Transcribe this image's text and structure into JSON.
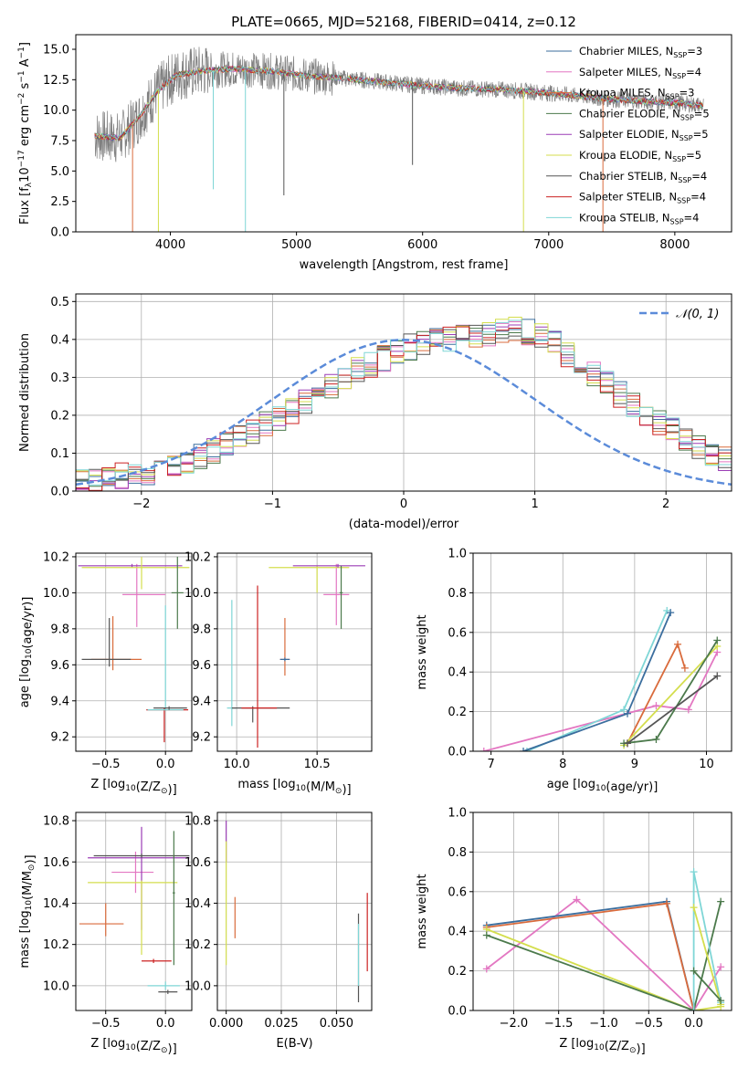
{
  "figure_title": "PLATE=0665, MJD=52168, FIBERID=0414, z=0.12",
  "colors": {
    "c0": "#3b6e9e",
    "c1": "#e377c2",
    "c2": "#d96b3c",
    "c3": "#4c7a4c",
    "c4": "#9b3db5",
    "c5": "#d4de4e",
    "c6": "#555555",
    "c7": "#cc2222",
    "c8": "#7fd6d6",
    "normal": "#5b8bd9",
    "grid": "#b0b0b0"
  },
  "chart_data": [
    {
      "id": "spectrum",
      "type": "line",
      "xlabel": "wavelength [Angstrom, rest frame]",
      "ylabel": "Flux [f",
      "xlim": [
        3250,
        8450
      ],
      "ylim": [
        0,
        16.2
      ],
      "xticks": [
        4000,
        5000,
        6000,
        7000,
        8000
      ],
      "yticks": [
        0.0,
        2.5,
        5.0,
        7.5,
        10.0,
        12.5,
        15.0
      ],
      "grid": false,
      "legend_position": "top-right",
      "series": [
        {
          "name": "Chabrier MILES, N",
          "sub": "SSP",
          "tail": "=3",
          "color": "c0"
        },
        {
          "name": "Salpeter MILES, N",
          "sub": "SSP",
          "tail": "=4",
          "color": "c1"
        },
        {
          "name": "Kroupa MILES, N",
          "sub": "SSP",
          "tail": "=3",
          "color": "c2"
        },
        {
          "name": "Chabrier ELODIE, N",
          "sub": "SSP",
          "tail": "=5",
          "color": "c3"
        },
        {
          "name": "Salpeter ELODIE, N",
          "sub": "SSP",
          "tail": "=5",
          "color": "c4"
        },
        {
          "name": "Kroupa ELODIE, N",
          "sub": "SSP",
          "tail": "=5",
          "color": "c5"
        },
        {
          "name": "Chabrier STELIB, N",
          "sub": "SSP",
          "tail": "=4",
          "color": "c6"
        },
        {
          "name": "Salpeter STELIB, N",
          "sub": "SSP",
          "tail": "=4",
          "color": "c7"
        },
        {
          "name": "Kroupa STELIB, N",
          "sub": "SSP",
          "tail": "=4",
          "color": "c8"
        }
      ],
      "continuum": {
        "x": [
          3400,
          3600,
          3750,
          3900,
          4050,
          4250,
          4500,
          4800,
          5100,
          5400,
          5700,
          6000,
          6300,
          6600,
          6900,
          7200,
          7500,
          7800,
          8000,
          8200
        ],
        "y": [
          7.9,
          7.7,
          9.4,
          11.6,
          12.9,
          13.2,
          13.4,
          13.2,
          12.8,
          12.6,
          12.3,
          12.0,
          11.8,
          11.7,
          11.5,
          11.2,
          10.9,
          10.7,
          10.6,
          10.4
        ]
      },
      "spikes_down": [
        {
          "x": 3700,
          "y": 0.0,
          "color": "c2"
        },
        {
          "x": 3905,
          "y": 0.0,
          "color": "c5"
        },
        {
          "x": 4595,
          "y": 0.0,
          "color": "c8"
        },
        {
          "x": 4340,
          "y": 3.5,
          "color": "c8"
        },
        {
          "x": 4900,
          "y": 3.0,
          "color": "c6"
        },
        {
          "x": 6800,
          "y": 0.0,
          "color": "c5"
        },
        {
          "x": 7430,
          "y": 0.0,
          "color": "c2"
        },
        {
          "x": 5920,
          "y": 5.5,
          "color": "c6"
        }
      ]
    },
    {
      "id": "residuals",
      "type": "histogram",
      "xlabel": "(data-model)/error",
      "ylabel": "Normed distribution",
      "xlim": [
        -2.5,
        2.5
      ],
      "ylim": [
        0,
        0.52
      ],
      "xticks": [
        -2,
        -1,
        0,
        1,
        2
      ],
      "yticks": [
        0.0,
        0.1,
        0.2,
        0.3,
        0.4,
        0.5
      ],
      "grid": true,
      "legend_position": "top-right",
      "legend_label": "𝒩(0, 1)",
      "bin_width": 0.1,
      "bin_start": -2.5,
      "base_values": [
        0.03,
        0.03,
        0.035,
        0.04,
        0.045,
        0.05,
        0.06,
        0.065,
        0.075,
        0.09,
        0.105,
        0.12,
        0.14,
        0.16,
        0.175,
        0.19,
        0.21,
        0.235,
        0.255,
        0.275,
        0.3,
        0.32,
        0.335,
        0.35,
        0.37,
        0.38,
        0.39,
        0.395,
        0.4,
        0.405,
        0.41,
        0.415,
        0.42,
        0.425,
        0.42,
        0.41,
        0.39,
        0.36,
        0.335,
        0.31,
        0.285,
        0.255,
        0.23,
        0.205,
        0.18,
        0.16,
        0.14,
        0.12,
        0.1,
        0.085,
        0.07,
        0.06,
        0.055,
        0.05,
        0.045,
        0.04,
        0.035,
        0.03,
        0.03,
        0.025
      ],
      "hist_colors": [
        "c0",
        "c1",
        "c2",
        "c3",
        "c4",
        "c5",
        "c6",
        "c7",
        "c8"
      ]
    },
    {
      "id": "age_vs_z",
      "type": "errorbar",
      "xlabel": "Z [log",
      "xlabel_sub": "10",
      "xlabel_tail": "(Z/Z",
      "xlabel_sym": "⊙",
      "xlabel_end": ")]",
      "ylabel": "age  [log",
      "ylabel_sub": "10",
      "ylabel_tail": "(age/yr)]",
      "xlim": [
        -0.75,
        0.22
      ],
      "ylim": [
        9.12,
        10.22
      ],
      "xticks": [
        -0.5,
        0.0
      ],
      "yticks": [
        9.2,
        9.4,
        9.6,
        9.8,
        10.0,
        10.2
      ],
      "grid": true,
      "points": [
        {
          "color": "c2",
          "x": -0.44,
          "xerr": [
            0.18,
            0.24
          ],
          "y": 9.63,
          "yerr": [
            0.06,
            0.24
          ]
        },
        {
          "color": "c6",
          "x": -0.47,
          "xerr": [
            0.23,
            0.18
          ],
          "y": 9.63,
          "yerr": [
            0.04,
            0.23
          ]
        },
        {
          "color": "c1",
          "x": -0.24,
          "xerr": [
            0.12,
            0.24
          ],
          "y": 9.99,
          "yerr": [
            0.18,
            0.17
          ]
        },
        {
          "color": "c4",
          "x": -0.28,
          "xerr": [
            0.45,
            0.42
          ],
          "y": 10.15,
          "yerr": [
            0.01,
            0.01
          ]
        },
        {
          "color": "c5",
          "x": -0.2,
          "xerr": [
            0.5,
            0.4
          ],
          "y": 10.14,
          "yerr": [
            0.12,
            0.06
          ]
        },
        {
          "color": "c3",
          "x": 0.1,
          "xerr": [
            0.05,
            0.05
          ],
          "y": 10.0,
          "yerr": [
            0.2,
            0.2
          ]
        },
        {
          "color": "c7",
          "x": -0.01,
          "xerr": [
            0.15,
            0.2
          ],
          "y": 9.35,
          "yerr": [
            0.18,
            0.01
          ]
        },
        {
          "color": "c8",
          "x": 0.0,
          "xerr": [
            0.15,
            0.15
          ],
          "y": 9.35,
          "yerr": [
            0.0,
            0.58
          ]
        },
        {
          "color": "c6",
          "x": 0.03,
          "xerr": [
            0.13,
            0.15
          ],
          "y": 9.36,
          "yerr": [
            0.01,
            0.01
          ]
        }
      ]
    },
    {
      "id": "age_vs_mass",
      "type": "errorbar",
      "xlabel": "mass [log",
      "xlabel_sub": "10",
      "xlabel_tail": "(M/M",
      "xlabel_sym": "⊙",
      "xlabel_end": ")]",
      "xlim": [
        9.88,
        10.84
      ],
      "ylim": [
        9.12,
        10.22
      ],
      "xticks": [
        10.0,
        10.5
      ],
      "yticks": [
        9.2,
        9.4,
        9.6,
        9.8,
        10.0,
        10.2
      ],
      "grid": true,
      "points": [
        {
          "color": "c8",
          "x": 9.97,
          "xerr": [
            0.03,
            0.03
          ],
          "y": 9.36,
          "yerr": [
            0.1,
            0.6
          ]
        },
        {
          "color": "c6",
          "x": 10.1,
          "xerr": [
            0.13,
            0.23
          ],
          "y": 9.36,
          "yerr": [
            0.08,
            0.01
          ]
        },
        {
          "color": "c7",
          "x": 10.13,
          "xerr": [
            0.1,
            0.12
          ],
          "y": 9.36,
          "yerr": [
            0.22,
            0.68
          ]
        },
        {
          "color": "c2",
          "x": 10.3,
          "xerr": [
            0.03,
            0.03
          ],
          "y": 9.63,
          "yerr": [
            0.09,
            0.23
          ]
        },
        {
          "color": "c0",
          "x": 10.3,
          "xerr": [
            0.03,
            0.03
          ],
          "y": 9.63,
          "yerr": [
            0.01,
            0.01
          ]
        },
        {
          "color": "c1",
          "x": 10.62,
          "xerr": [
            0.08,
            0.08
          ],
          "y": 9.99,
          "yerr": [
            0.17,
            0.17
          ]
        },
        {
          "color": "c5",
          "x": 10.5,
          "xerr": [
            0.3,
            0.2
          ],
          "y": 10.14,
          "yerr": [
            0.14,
            0.01
          ]
        },
        {
          "color": "c4",
          "x": 10.63,
          "xerr": [
            0.28,
            0.17
          ],
          "y": 10.15,
          "yerr": [
            0.01,
            0.01
          ]
        },
        {
          "color": "c3",
          "x": 10.65,
          "xerr": [
            0.01,
            0.01
          ],
          "y": 10.0,
          "yerr": [
            0.2,
            0.15
          ]
        }
      ]
    },
    {
      "id": "weight_vs_age",
      "type": "line",
      "xlabel": "age  [log",
      "xlabel_sub": "10",
      "xlabel_tail": "(age/yr)]",
      "ylabel": "mass weight",
      "xlim": [
        6.75,
        10.35
      ],
      "ylim": [
        0,
        1.0
      ],
      "xticks": [
        7,
        8,
        9,
        10
      ],
      "yticks": [
        0.0,
        0.2,
        0.4,
        0.6,
        0.8,
        1.0
      ],
      "grid": true,
      "series": [
        {
          "color": "c1",
          "x": [
            6.9,
            9.3,
            9.75,
            10.15
          ],
          "y": [
            0.0,
            0.23,
            0.21,
            0.5
          ]
        },
        {
          "color": "c8",
          "x": [
            7.5,
            8.85,
            9.45
          ],
          "y": [
            0.0,
            0.21,
            0.71
          ]
        },
        {
          "color": "c0",
          "x": [
            7.45,
            8.9,
            9.5
          ],
          "y": [
            0.0,
            0.19,
            0.7
          ]
        },
        {
          "color": "c2",
          "x": [
            8.9,
            9.6,
            9.7
          ],
          "y": [
            0.04,
            0.54,
            0.42
          ]
        },
        {
          "color": "c5",
          "x": [
            8.85,
            10.15
          ],
          "y": [
            0.03,
            0.53
          ]
        },
        {
          "color": "c3",
          "x": [
            8.85,
            9.3,
            10.15
          ],
          "y": [
            0.04,
            0.06,
            0.56
          ]
        },
        {
          "color": "c6",
          "x": [
            8.9,
            10.15
          ],
          "y": [
            0.04,
            0.38
          ]
        }
      ]
    },
    {
      "id": "mass_vs_z",
      "type": "errorbar",
      "xlabel": "Z [log",
      "xlabel_sub": "10",
      "xlabel_tail": "(Z/Z",
      "xlabel_sym": "⊙",
      "xlabel_end": ")]",
      "ylabel": "mass [log",
      "ylabel_sub": "10",
      "ylabel_tail": "(M/M",
      "ylabel_sym": "⊙",
      "ylabel_end": ")]",
      "xlim": [
        -0.75,
        0.22
      ],
      "ylim": [
        9.88,
        10.84
      ],
      "xticks": [
        -0.5,
        0.0
      ],
      "yticks": [
        10.0,
        10.2,
        10.4,
        10.6,
        10.8
      ],
      "grid": true,
      "points": [
        {
          "color": "c2",
          "x": -0.5,
          "xerr": [
            0.22,
            0.15
          ],
          "y": 10.3,
          "yerr": [
            0.06,
            0.1
          ]
        },
        {
          "color": "c1",
          "x": -0.25,
          "xerr": [
            0.2,
            0.15
          ],
          "y": 10.55,
          "yerr": [
            0.1,
            0.1
          ]
        },
        {
          "color": "c4",
          "x": -0.2,
          "xerr": [
            0.45,
            0.4
          ],
          "y": 10.62,
          "yerr": [
            0.35,
            0.15
          ]
        },
        {
          "color": "c5",
          "x": -0.2,
          "xerr": [
            0.45,
            0.3
          ],
          "y": 10.5,
          "yerr": [
            0.35,
            0.01
          ]
        },
        {
          "color": "c6",
          "x": -0.2,
          "xerr": [
            0.4,
            0.4
          ],
          "y": 10.63,
          "yerr": [
            0.01,
            0.01
          ]
        },
        {
          "color": "c7",
          "x": -0.1,
          "xerr": [
            0.1,
            0.15
          ],
          "y": 10.12,
          "yerr": [
            0.01,
            0.01
          ]
        },
        {
          "color": "c3",
          "x": 0.07,
          "xerr": [
            0.01,
            0.01
          ],
          "y": 10.45,
          "yerr": [
            0.35,
            0.3
          ]
        },
        {
          "color": "c8",
          "x": 0.0,
          "xerr": [
            0.15,
            0.12
          ],
          "y": 10.0,
          "yerr": [
            0.02,
            0.02
          ]
        },
        {
          "color": "c6",
          "x": 0.02,
          "xerr": [
            0.08,
            0.08
          ],
          "y": 9.97,
          "yerr": [
            0.01,
            0.01
          ]
        }
      ]
    },
    {
      "id": "mass_vs_ebv",
      "type": "errorbar",
      "xlabel": "E(B-V)",
      "xlim": [
        -0.004,
        0.066
      ],
      "ylim": [
        9.88,
        10.84
      ],
      "xticks": [
        0.0,
        0.025,
        0.05
      ],
      "yticks": [
        10.0,
        10.2,
        10.4,
        10.6,
        10.8
      ],
      "grid": true,
      "points": [
        {
          "color": "c4",
          "x": 0.0,
          "xerr": [
            0.0,
            0.0
          ],
          "y": 10.62,
          "yerr": [
            0.02,
            0.18
          ]
        },
        {
          "color": "c5",
          "x": 0.0,
          "xerr": [
            0.0,
            0.0
          ],
          "y": 10.5,
          "yerr": [
            0.4,
            0.2
          ]
        },
        {
          "color": "c2",
          "x": 0.004,
          "xerr": [
            0.0,
            0.0
          ],
          "y": 10.3,
          "yerr": [
            0.07,
            0.13
          ]
        },
        {
          "color": "c7",
          "x": 0.064,
          "xerr": [
            0.0,
            0.0
          ],
          "y": 10.25,
          "yerr": [
            0.18,
            0.2
          ]
        },
        {
          "color": "c6",
          "x": 0.06,
          "xerr": [
            0.0,
            0.0
          ],
          "y": 10.1,
          "yerr": [
            0.18,
            0.25
          ]
        },
        {
          "color": "c8",
          "x": 0.06,
          "xerr": [
            0.0,
            0.0
          ],
          "y": 10.1,
          "yerr": [
            0.1,
            0.2
          ]
        }
      ]
    },
    {
      "id": "weight_vs_z",
      "type": "line",
      "xlabel": "Z [log",
      "xlabel_sub": "10",
      "xlabel_tail": "(Z/Z",
      "xlabel_sym": "⊙",
      "xlabel_end": ")]",
      "ylabel": "mass weight",
      "xlim": [
        -2.45,
        0.42
      ],
      "ylim": [
        0,
        1.0
      ],
      "xticks": [
        -2.0,
        -1.5,
        -1.0,
        -0.5,
        0.0
      ],
      "yticks": [
        0.0,
        0.2,
        0.4,
        0.6,
        0.8,
        1.0
      ],
      "grid": true,
      "series": [
        {
          "color": "c1",
          "x": [
            -2.3,
            -1.3,
            0.0,
            0.3
          ],
          "y": [
            0.21,
            0.56,
            0.0,
            0.22
          ]
        },
        {
          "color": "c0",
          "x": [
            -2.3,
            -0.3,
            0.0
          ],
          "y": [
            0.43,
            0.55,
            0.0
          ]
        },
        {
          "color": "c2",
          "x": [
            -2.3,
            -0.3,
            0.0
          ],
          "y": [
            0.42,
            0.54,
            0.0
          ]
        },
        {
          "color": "c5",
          "x": [
            -2.3,
            0.0,
            0.3
          ],
          "y": [
            0.41,
            0.0,
            0.02
          ]
        },
        {
          "color": "c3",
          "x": [
            -2.3,
            0.0,
            0.3
          ],
          "y": [
            0.38,
            0.0,
            0.55
          ]
        },
        {
          "color": "c8",
          "x": [
            0.0,
            0.0,
            0.3
          ],
          "y": [
            0.0,
            0.7,
            0.04
          ]
        },
        {
          "color": "c5",
          "x": [
            0.0,
            0.3
          ],
          "y": [
            0.52,
            0.03
          ]
        },
        {
          "color": "c3",
          "x": [
            0.0,
            0.3
          ],
          "y": [
            0.2,
            0.05
          ]
        }
      ]
    }
  ]
}
